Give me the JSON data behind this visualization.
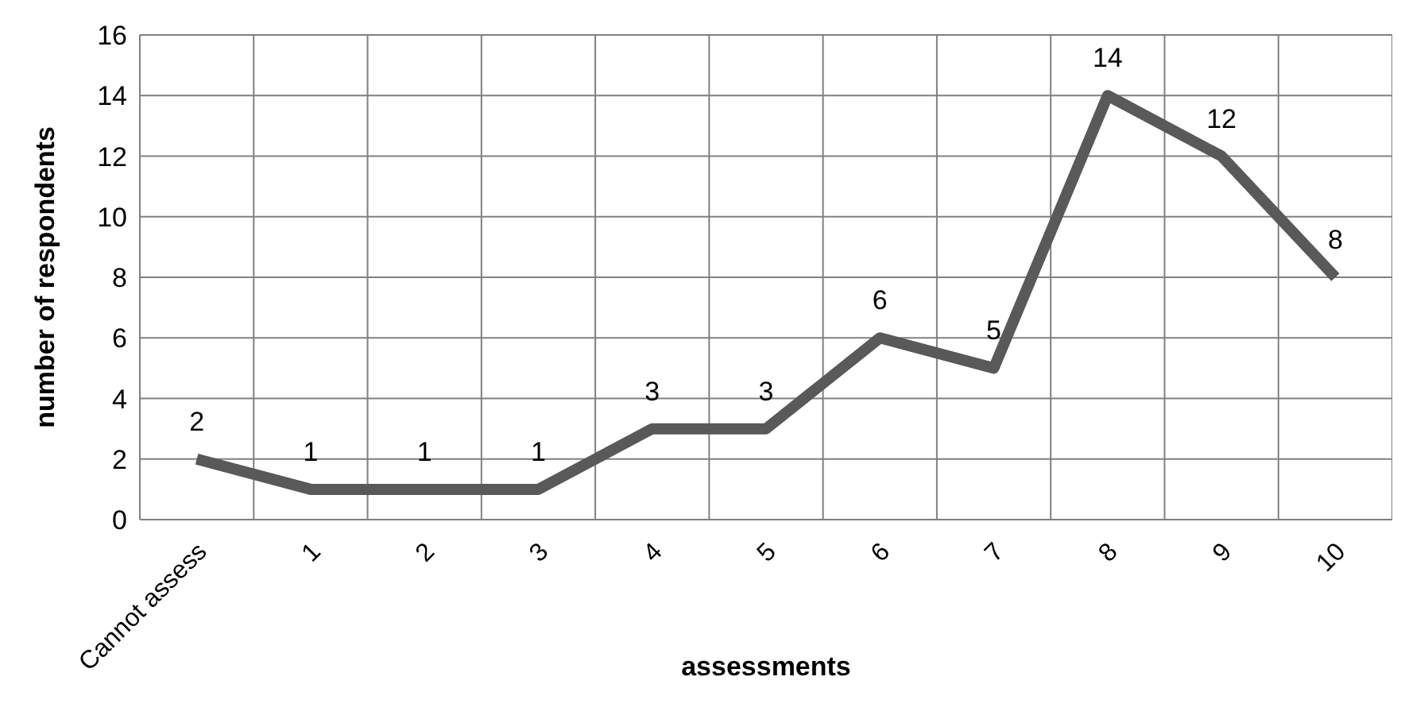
{
  "chart_data": {
    "type": "line",
    "xlabel": "assessments",
    "ylabel": "number of respondents",
    "categories": [
      "Cannot assess",
      "1",
      "2",
      "3",
      "4",
      "5",
      "6",
      "7",
      "8",
      "9",
      "10"
    ],
    "series": [
      {
        "color": "#595959",
        "values": [
          2,
          1,
          1,
          1,
          3,
          3,
          6,
          5,
          14,
          12,
          8
        ]
      }
    ],
    "ylim": [
      0,
      16
    ],
    "yticks": [
      0,
      2,
      4,
      6,
      8,
      10,
      12,
      14,
      16
    ],
    "grid": true,
    "legend": false,
    "marker": "none",
    "line_style": "solid",
    "data_labels": true
  }
}
